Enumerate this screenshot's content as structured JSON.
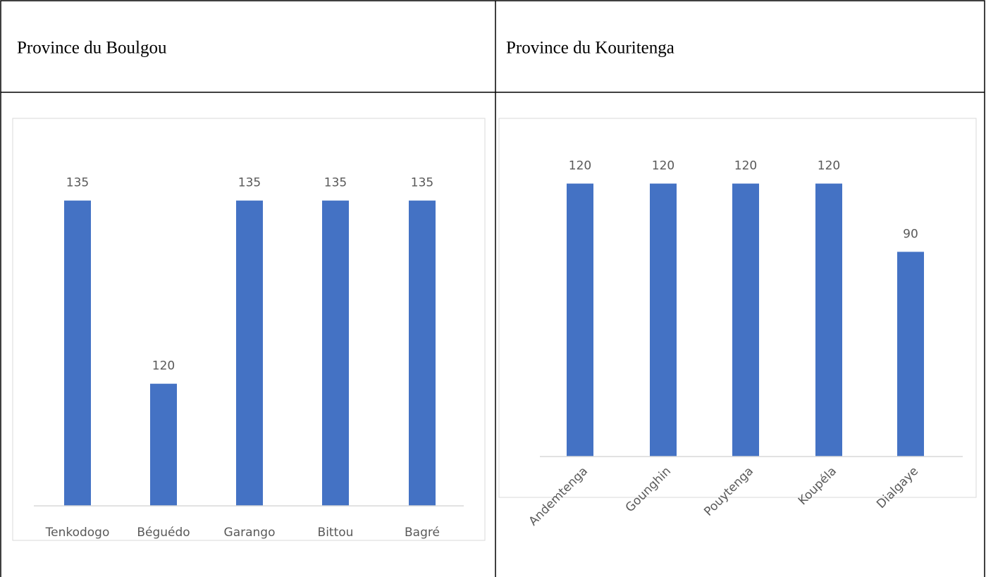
{
  "chart_data": [
    {
      "type": "bar",
      "title": "Province du Boulgou",
      "categories": [
        "Tenkodogo",
        "Béguédo",
        "Garango",
        "Bittou",
        "Bagré"
      ],
      "values": [
        135,
        120,
        135,
        135,
        135
      ],
      "color": "#4472c4",
      "ylim": [
        110,
        140
      ]
    },
    {
      "type": "bar",
      "title": "Province du Kouritenga",
      "categories": [
        "Andemtenga",
        "Gounghin",
        "Pouytenga",
        "Koupéla",
        "Dialgaye"
      ],
      "values": [
        120,
        120,
        120,
        120,
        90
      ],
      "color": "#4472c4",
      "ylim": [
        0,
        140
      ],
      "rotate_labels": true
    }
  ]
}
